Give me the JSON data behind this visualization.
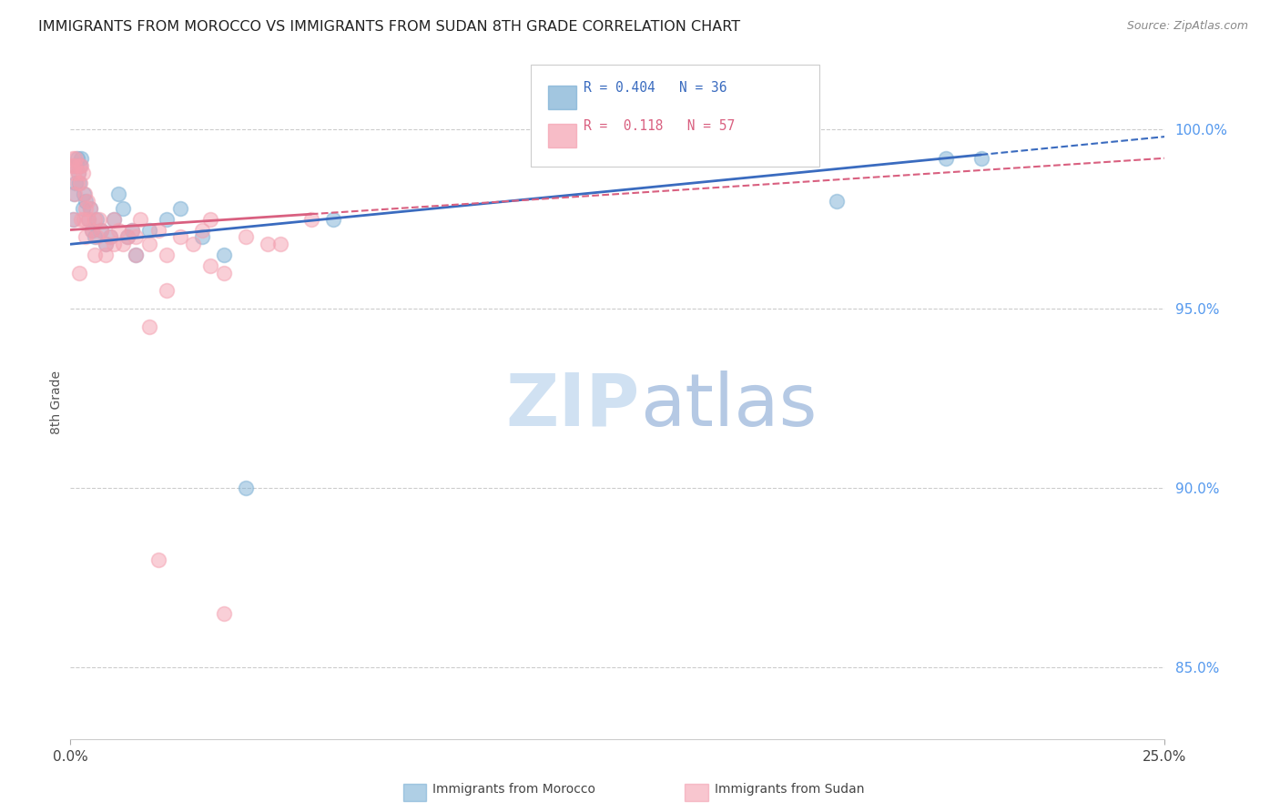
{
  "title": "IMMIGRANTS FROM MOROCCO VS IMMIGRANTS FROM SUDAN 8TH GRADE CORRELATION CHART",
  "source": "Source: ZipAtlas.com",
  "ylabel": "8th Grade",
  "yaxis_ticks": [
    85.0,
    90.0,
    95.0,
    100.0
  ],
  "yaxis_labels": [
    "85.0%",
    "90.0%",
    "95.0%",
    "100.0%"
  ],
  "xmin": 0.0,
  "xmax": 25.0,
  "ymin": 83.0,
  "ymax": 101.8,
  "morocco_color": "#7bafd4",
  "sudan_color": "#f4a0b0",
  "morocco_R": 0.404,
  "morocco_N": 36,
  "sudan_R": 0.118,
  "sudan_N": 57,
  "morocco_line_color": "#3a6bbf",
  "sudan_line_color": "#d96080",
  "watermark_zip_color": "#c8dcf0",
  "watermark_atlas_color": "#a8c0e0",
  "morocco_points_x": [
    0.05,
    0.08,
    0.1,
    0.12,
    0.15,
    0.18,
    0.2,
    0.22,
    0.25,
    0.28,
    0.3,
    0.35,
    0.4,
    0.45,
    0.5,
    0.55,
    0.6,
    0.7,
    0.8,
    0.9,
    1.0,
    1.1,
    1.3,
    1.5,
    1.8,
    2.2,
    2.5,
    3.0,
    3.5,
    4.0,
    1.2,
    1.4,
    6.0,
    17.5,
    20.0,
    20.8
  ],
  "morocco_points_y": [
    97.5,
    98.2,
    99.0,
    98.5,
    99.2,
    98.8,
    98.5,
    99.0,
    99.2,
    97.8,
    98.2,
    98.0,
    97.5,
    97.8,
    97.2,
    97.0,
    97.5,
    97.2,
    96.8,
    97.0,
    97.5,
    98.2,
    97.0,
    96.5,
    97.2,
    97.5,
    97.8,
    97.0,
    96.5,
    90.0,
    97.8,
    97.2,
    97.5,
    98.0,
    99.2,
    99.2
  ],
  "sudan_points_x": [
    0.04,
    0.06,
    0.08,
    0.1,
    0.12,
    0.15,
    0.18,
    0.2,
    0.22,
    0.25,
    0.28,
    0.3,
    0.32,
    0.35,
    0.38,
    0.4,
    0.45,
    0.5,
    0.55,
    0.6,
    0.65,
    0.7,
    0.8,
    0.9,
    1.0,
    1.1,
    1.2,
    1.3,
    1.4,
    1.5,
    1.6,
    1.8,
    2.0,
    2.2,
    2.5,
    2.8,
    3.0,
    3.2,
    3.5,
    4.0,
    4.5,
    0.35,
    0.55,
    1.0,
    1.5,
    3.2,
    4.8,
    5.5,
    0.08,
    0.1,
    0.2,
    0.25,
    2.2,
    0.8,
    1.8,
    2.0,
    3.5
  ],
  "sudan_points_y": [
    99.0,
    99.2,
    98.8,
    99.0,
    99.2,
    98.5,
    98.8,
    99.0,
    98.5,
    99.0,
    98.8,
    97.5,
    98.2,
    97.8,
    98.0,
    97.5,
    97.8,
    97.2,
    97.5,
    97.0,
    97.5,
    97.2,
    96.8,
    97.0,
    97.5,
    97.2,
    96.8,
    97.0,
    97.2,
    96.5,
    97.5,
    96.8,
    97.2,
    96.5,
    97.0,
    96.8,
    97.2,
    97.5,
    96.0,
    97.0,
    96.8,
    97.0,
    96.5,
    96.8,
    97.0,
    96.2,
    96.8,
    97.5,
    97.5,
    98.2,
    96.0,
    97.5,
    95.5,
    96.5,
    94.5,
    88.0,
    86.5
  ],
  "morocco_trend_x0": 0.0,
  "morocco_trend_x1": 25.0,
  "morocco_trend_y0": 96.8,
  "morocco_trend_y1": 99.8,
  "sudan_trend_x0": 0.0,
  "sudan_trend_x1": 25.0,
  "sudan_trend_y0": 97.2,
  "sudan_trend_y1": 99.2
}
